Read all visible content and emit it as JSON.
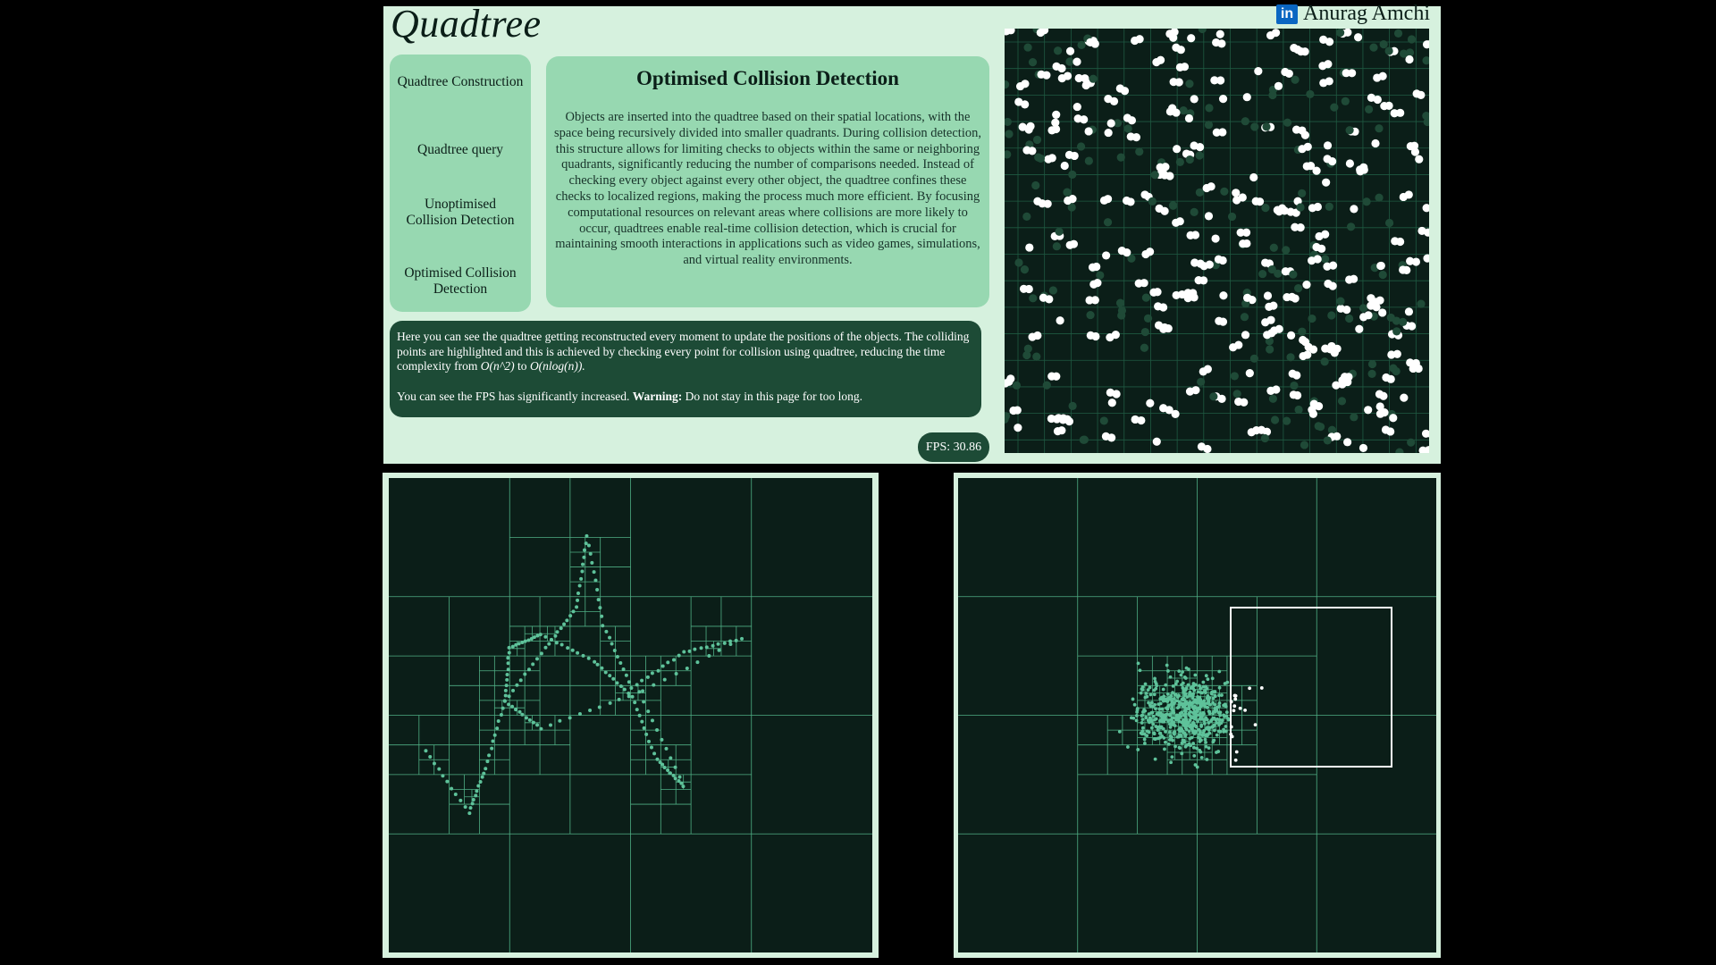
{
  "header": {
    "title": "Quadtree",
    "author": "Anurag Amchi",
    "author_icon": "linkedin-icon"
  },
  "nav": {
    "items": [
      {
        "label": "Quadtree Construction"
      },
      {
        "label": "Quadtree query"
      },
      {
        "label": "Unoptimised Collision Detection"
      },
      {
        "label": "Optimised Collision Detection"
      }
    ]
  },
  "description": {
    "title": "Optimised Collision Detection",
    "body": "Objects are inserted into the quadtree based on their spatial locations, with the space being recursively divided into smaller quadrants. During collision detection, this structure allows for limiting checks to objects within the same or neighboring quadrants, significantly reducing the number of comparisons needed. Instead of checking every object against every other object, the quadtree confines these checks to localized regions, making the process much more efficient. By focusing computational resources on relevant areas where collisions are more likely to occur, quadtrees enable real-time collision detection, which is crucial for maintaining smooth interactions in applications such as video games, simulations, and virtual reality environments."
  },
  "info": {
    "p1_text": "Here you can see the quadtree getting reconstructed every moment to update the positions of the objects. The colliding points are highlighted and this is achieved by checking every point for collision using quadtree, reducing the time complexity from",
    "p1_from": "O(n^2)",
    "p1_to_word": "to",
    "p1_to": "O(nlog(n)).",
    "p2_text": "You can see the FPS has significantly increased.",
    "p2_warning_label": "Warning:",
    "p2_warning_text": "Do not stay in this page for too long."
  },
  "fps": {
    "label": "FPS: 30.86",
    "value": 30.86
  },
  "colors": {
    "panel_bg": "#d6f1de",
    "card_bg": "#97d8b1",
    "dark_card_bg": "#1d4b36",
    "canvas_bg": "#0b1e18",
    "grid_line": "#4fae84",
    "point": "#5ec29a",
    "highlight": "#ffffff"
  }
}
